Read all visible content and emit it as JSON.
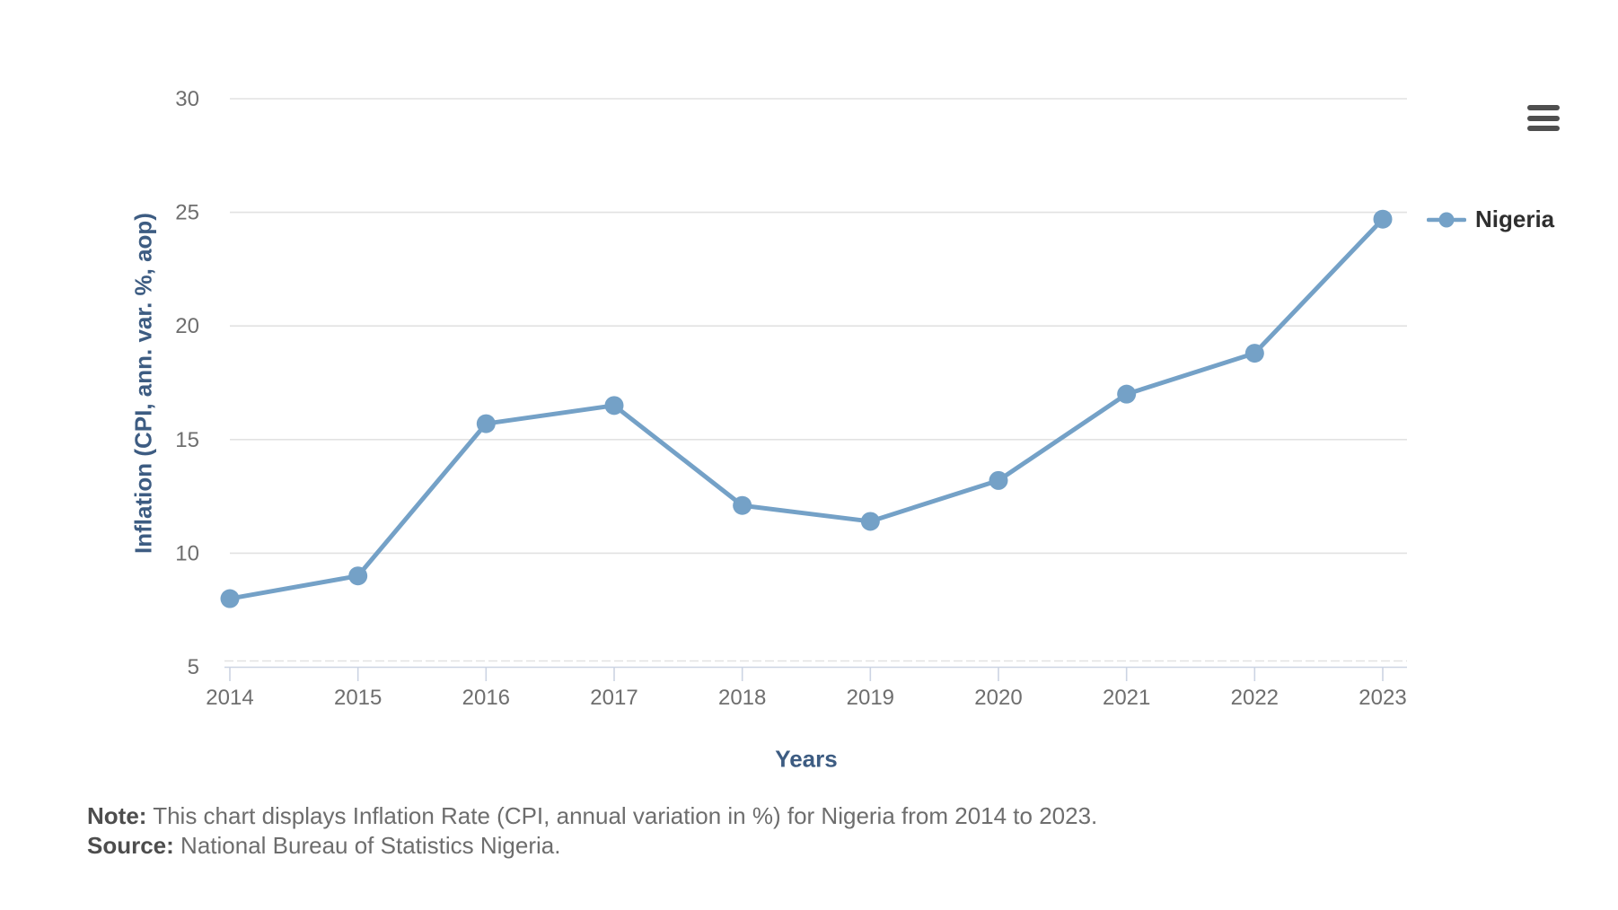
{
  "chart_data": {
    "type": "line",
    "title": "",
    "x": [
      "2014",
      "2015",
      "2016",
      "2017",
      "2018",
      "2019",
      "2020",
      "2021",
      "2022",
      "2023"
    ],
    "series": [
      {
        "name": "Nigeria",
        "color": "#74a1c7",
        "values": [
          8.0,
          9.0,
          15.7,
          16.5,
          12.1,
          11.4,
          13.2,
          17.0,
          18.8,
          24.7
        ]
      }
    ],
    "xlabel": "Years",
    "ylabel": "Inflation (CPI, ann. var. %, aop)",
    "ylim": [
      5,
      30
    ],
    "yticks": [
      5,
      10,
      15,
      20,
      25,
      30
    ],
    "grid": true,
    "legend_position": "right",
    "marker": "circle"
  },
  "legend": {
    "label": "Nigeria"
  },
  "menu": {
    "icon": "hamburger-menu-icon",
    "tooltip": "Chart context menu"
  },
  "note": {
    "label": "Note:",
    "text": "This chart displays Inflation Rate (CPI, annual variation in %) for Nigeria from 2014 to 2023."
  },
  "source": {
    "label": "Source:",
    "text": "National Bureau of Statistics Nigeria."
  },
  "colors": {
    "series": "#74a1c7",
    "axis_title": "#3d5c82",
    "tick_text": "#6e6e6e",
    "gridline": "#e2e2e2",
    "axis_line": "#ccd4e3",
    "legend_text": "#2f2f2f",
    "menu_icon": "#4f4f4f",
    "note_label": "#4d4d4d",
    "note_text": "#6d6d6d"
  }
}
